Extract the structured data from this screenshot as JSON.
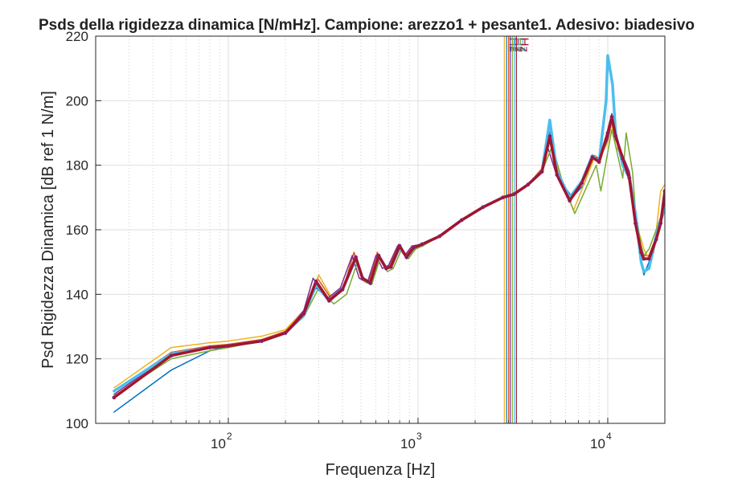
{
  "chart_data": {
    "type": "line",
    "title": "Psds della rigidezza dinamica [N/mHz]. Campione: arezzo1 + pesante1. Adesivo: biadesivo",
    "xlabel": "Frequenza [Hz]",
    "ylabel": "Psd Rigidezza Dinamica [dB ref 1 N/m]",
    "xscale": "log",
    "xlim": [
      20,
      20000
    ],
    "ylim": [
      100,
      220
    ],
    "grid": "on (major solid, minor dotted)",
    "x_ticks": [
      {
        "base": "10",
        "exp": "2",
        "value": 100
      },
      {
        "base": "10",
        "exp": "3",
        "value": 1000
      },
      {
        "base": "10",
        "exp": "4",
        "value": 10000
      }
    ],
    "y_ticks": [
      100,
      120,
      140,
      160,
      180,
      200,
      220
    ],
    "vertical_line_label": "Limite in frequenza: 3000 Hz",
    "vertical_lines": [
      {
        "x": 2850,
        "color": "#EDB120"
      },
      {
        "x": 2930,
        "color": "#0072BD"
      },
      {
        "x": 3000,
        "color": "#D95319"
      },
      {
        "x": 3060,
        "color": "#7E2F8E"
      },
      {
        "x": 3140,
        "color": "#77AC30"
      },
      {
        "x": 3220,
        "color": "#4DBEEE"
      },
      {
        "x": 3300,
        "color": "#A2142F"
      }
    ],
    "series": [
      {
        "color": "#0072BD",
        "width": 1.5,
        "dots": false,
        "x": [
          25,
          50,
          80,
          100,
          150,
          200,
          250,
          290,
          340,
          400,
          470,
          510,
          560,
          620,
          680,
          720,
          800,
          870,
          950,
          1050,
          1300,
          1700,
          2200,
          2800,
          3200,
          3800,
          4500,
          5000,
          5500,
          6500,
          7500,
          8500,
          9000,
          10000,
          10500,
          11000,
          12000,
          13000,
          14000,
          15000,
          15500,
          16500,
          18000,
          19000,
          20000
        ],
        "y": [
          103.5,
          116.5,
          122.5,
          124,
          125.5,
          128,
          134,
          142,
          138.5,
          142,
          151,
          145,
          143,
          152,
          148,
          149,
          155,
          151,
          154,
          155,
          158,
          163,
          167,
          170,
          171,
          174,
          178,
          191,
          176,
          170,
          174,
          183,
          181,
          190,
          196,
          189,
          183,
          176,
          165,
          150,
          146,
          150,
          158,
          162,
          166
        ]
      },
      {
        "color": "#D95319",
        "width": 1.5,
        "dots": false,
        "x": [
          25,
          50,
          80,
          100,
          150,
          200,
          250,
          295,
          345,
          400,
          460,
          500,
          550,
          610,
          670,
          710,
          790,
          860,
          940,
          1050,
          1300,
          1700,
          2200,
          2800,
          3200,
          3800,
          4500,
          4900,
          5400,
          6400,
          7400,
          8400,
          9000,
          10000,
          10500,
          11000,
          12000,
          13000,
          14000,
          15000,
          15500,
          16500,
          18000,
          19000,
          20000
        ],
        "y": [
          110,
          122,
          124,
          124.5,
          126,
          128.5,
          134.5,
          145,
          139,
          141,
          153,
          145.5,
          144,
          153,
          148,
          149,
          155.5,
          152,
          155,
          155.5,
          158,
          163,
          167,
          170,
          171,
          174,
          179,
          190,
          177,
          170,
          175,
          182,
          181,
          189,
          195,
          188,
          183,
          177,
          163,
          155,
          152,
          152,
          158,
          163,
          171
        ]
      },
      {
        "color": "#EDB120",
        "width": 1.5,
        "dots": false,
        "x": [
          25,
          50,
          80,
          100,
          150,
          200,
          250,
          300,
          350,
          400,
          470,
          510,
          560,
          620,
          680,
          720,
          800,
          870,
          950,
          1050,
          1300,
          1700,
          2200,
          2800,
          3200,
          3800,
          4500,
          5000,
          5600,
          6600,
          7600,
          8600,
          9000,
          10000,
          10500,
          11000,
          12000,
          13000,
          14000,
          15000,
          15500,
          16500,
          17500,
          19000,
          20000
        ],
        "y": [
          111,
          123.5,
          125,
          125.5,
          127,
          129,
          135,
          146,
          139,
          141.5,
          152,
          145,
          143.5,
          152.5,
          148,
          148.5,
          155,
          151.5,
          154.5,
          155.5,
          158,
          163,
          167,
          170,
          171,
          174,
          178,
          188,
          176,
          166,
          175,
          183,
          182,
          187,
          193,
          186,
          182,
          178,
          162,
          157,
          154,
          151,
          153,
          172,
          174
        ]
      },
      {
        "color": "#7E2F8E",
        "width": 1.5,
        "dots": false,
        "x": [
          25,
          50,
          80,
          100,
          150,
          200,
          250,
          280,
          330,
          390,
          450,
          490,
          540,
          600,
          650,
          700,
          780,
          850,
          930,
          1050,
          1300,
          1700,
          2200,
          2800,
          3200,
          3800,
          4500,
          4800,
          5300,
          6300,
          7300,
          8300,
          9000,
          10000,
          10500,
          11000,
          12000,
          13000,
          14000,
          15000,
          15500,
          16500,
          18000,
          19000,
          20000
        ],
        "y": [
          109,
          121.5,
          123.5,
          124,
          125.5,
          128,
          135,
          145,
          138.5,
          142,
          152,
          145,
          143.5,
          152,
          148,
          149,
          155,
          152,
          155,
          155.5,
          158,
          163,
          167,
          170,
          171,
          174,
          178,
          186,
          178,
          169,
          175,
          183,
          182,
          188,
          194,
          188,
          183,
          178,
          166,
          153,
          151,
          151,
          157,
          161,
          170
        ]
      },
      {
        "color": "#77AC30",
        "width": 1.5,
        "dots": false,
        "x": [
          25,
          50,
          80,
          100,
          150,
          200,
          250,
          300,
          360,
          420,
          480,
          520,
          570,
          630,
          690,
          740,
          820,
          890,
          970,
          1060,
          1300,
          1700,
          2200,
          2800,
          3200,
          3800,
          4500,
          5100,
          5700,
          6700,
          7700,
          8700,
          9200,
          10000,
          10500,
          11000,
          12000,
          12500,
          13500,
          14000,
          15000,
          15500,
          16500,
          18000,
          19000,
          20000
        ],
        "y": [
          108.5,
          120,
          122.5,
          123.5,
          125.5,
          128,
          133,
          142,
          137,
          140,
          150,
          144,
          143,
          151,
          147,
          148,
          154,
          151,
          154,
          155,
          158,
          163,
          167,
          170,
          171,
          174,
          178,
          186,
          176,
          165,
          173,
          180,
          172,
          184,
          191,
          186,
          176,
          190,
          178,
          166,
          155,
          152,
          154,
          160,
          164,
          168
        ]
      },
      {
        "color": "#4DBEEE",
        "width": 3.5,
        "dots": false,
        "x": [
          25,
          50,
          80,
          100,
          150,
          200,
          250,
          290,
          340,
          400,
          470,
          510,
          560,
          620,
          680,
          720,
          800,
          870,
          950,
          1050,
          1300,
          1700,
          2200,
          2800,
          3200,
          3800,
          4500,
          4950,
          5400,
          6300,
          7300,
          8300,
          9000,
          9800,
          10000,
          10600,
          11000,
          12000,
          13000,
          14000,
          15000,
          15500,
          16500,
          18000,
          19000,
          20000
        ],
        "y": [
          110,
          121.5,
          123.5,
          124,
          125.5,
          128,
          133.5,
          143,
          138,
          141.5,
          151,
          145,
          143.5,
          152,
          148,
          148.5,
          154.5,
          151.5,
          154.5,
          155.5,
          158,
          163,
          167,
          170,
          171,
          174,
          178,
          194,
          178,
          170,
          175,
          183,
          181,
          200,
          214,
          205,
          190,
          180,
          176,
          165,
          150,
          147,
          148,
          158,
          163,
          167
        ]
      },
      {
        "color": "#A2142F",
        "width": 3.5,
        "dots": true,
        "x": [
          25,
          50,
          80,
          100,
          150,
          200,
          250,
          290,
          340,
          400,
          470,
          510,
          560,
          620,
          680,
          720,
          800,
          870,
          950,
          1050,
          1300,
          1700,
          2200,
          2800,
          3200,
          3800,
          4500,
          4950,
          5400,
          6300,
          7300,
          8300,
          9000,
          10000,
          10500,
          11000,
          12000,
          13000,
          14000,
          15000,
          15500,
          16500,
          18000,
          19000,
          20000
        ],
        "y": [
          108,
          121,
          123.5,
          124,
          125.5,
          128,
          134,
          144,
          138,
          141.5,
          151.5,
          145,
          143.5,
          152,
          148,
          148.5,
          155,
          151.5,
          154.5,
          155.5,
          158,
          163,
          167,
          170,
          171,
          174,
          178,
          189,
          177,
          169,
          174.5,
          182.5,
          181,
          190,
          195,
          189,
          182,
          176,
          162,
          153,
          151,
          151,
          157,
          162,
          172
        ]
      }
    ]
  }
}
